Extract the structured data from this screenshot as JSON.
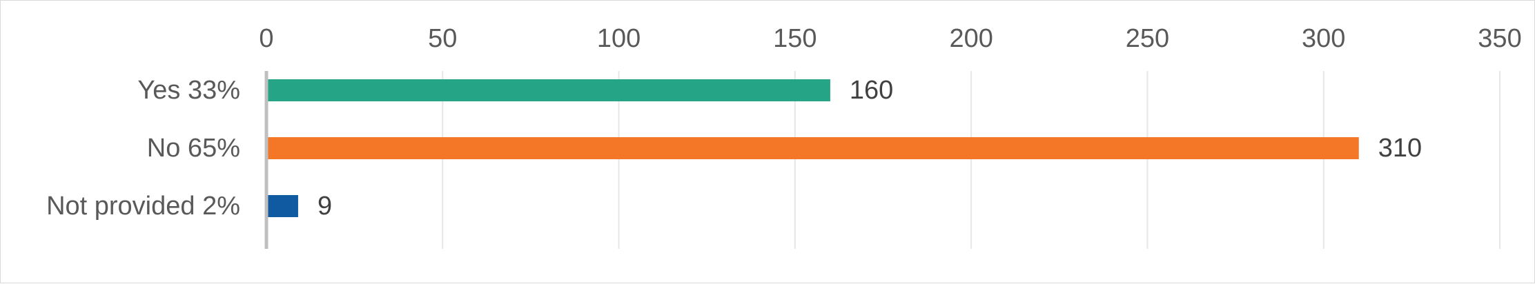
{
  "chart_data": {
    "type": "bar",
    "orientation": "horizontal",
    "categories": [
      "Yes 33%",
      "No 65%",
      "Not provided 2%"
    ],
    "values": [
      160,
      310,
      9
    ],
    "colors": [
      "#26a586",
      "#f37726",
      "#0f5aa0"
    ],
    "xlim": [
      0,
      350
    ],
    "xticks": [
      0,
      50,
      100,
      150,
      200,
      250,
      300,
      350
    ],
    "xtick_labels": [
      "0",
      "50",
      "100",
      "150",
      "200",
      "250",
      "300",
      "350"
    ],
    "x_axis_position": "top",
    "grid": true,
    "legend": "none",
    "data_labels": [
      "160",
      "310",
      "9"
    ]
  }
}
